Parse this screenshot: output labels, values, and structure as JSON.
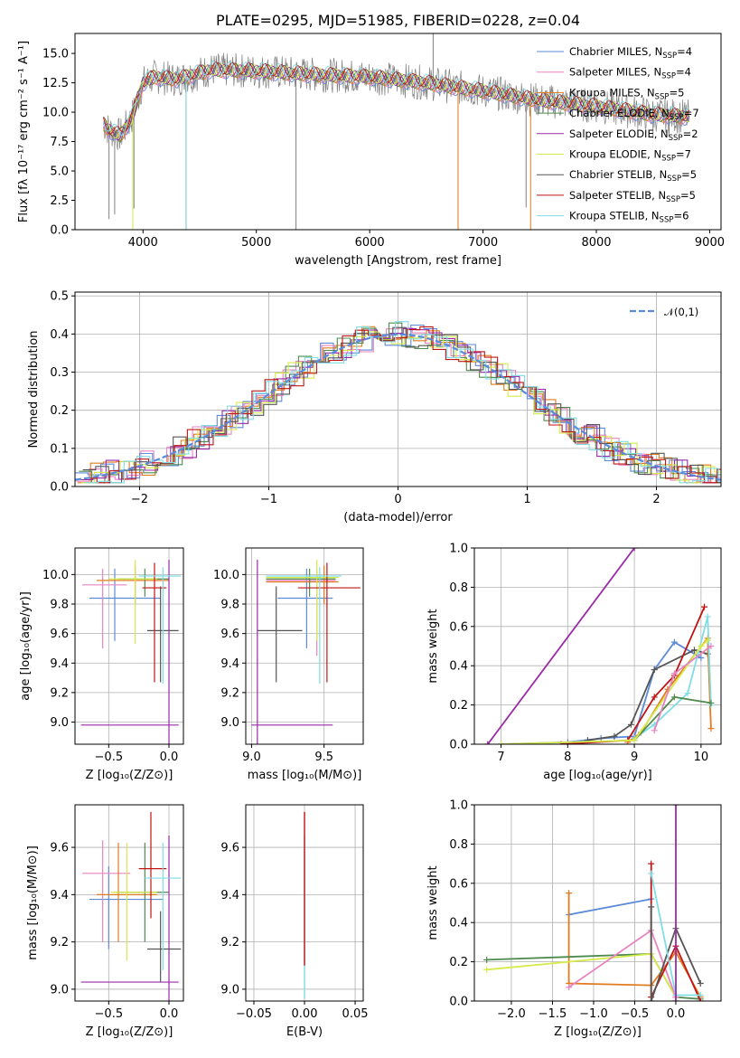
{
  "colors": {
    "chabrier_miles": "#5b8bd9",
    "salpeter_miles": "#e884c0",
    "kroupa_miles": "#e07b1f",
    "chabrier_elodie": "#4e8a4e",
    "salpeter_elodie": "#9a2aa8",
    "kroupa_elodie": "#d6ea4a",
    "chabrier_stelib": "#555555",
    "salpeter_stelib": "#c01414",
    "kroupa_stelib": "#7fdde4",
    "data": "#808080",
    "normal": "#5b8bd9"
  },
  "chart_data": [
    {
      "id": "spectrum",
      "type": "line",
      "title": "PLATE=0295, MJD=51985, FIBERID=0228, z=0.04",
      "xlabel": "wavelength [Angstrom, rest frame]",
      "ylabel": "Flux [fλ 10⁻¹⁷ erg cm⁻² s⁻¹ A⁻¹]",
      "xlim": [
        3400,
        9100
      ],
      "ylim": [
        0,
        16.7
      ],
      "xticks": [
        "4000",
        "5000",
        "6000",
        "7000",
        "8000",
        "9000"
      ],
      "yticks": [
        "0.0",
        "2.5",
        "5.0",
        "7.5",
        "10.0",
        "12.5",
        "15.0"
      ],
      "legend_position": "top-right",
      "legend": [
        {
          "label": "Chabrier MILES, N",
          "sub": "SSP",
          "tail": "=4",
          "color_key": "chabrier_miles"
        },
        {
          "label": "Salpeter MILES, N",
          "sub": "SSP",
          "tail": "=4",
          "color_key": "salpeter_miles"
        },
        {
          "label": "Kroupa MILES, N",
          "sub": "SSP",
          "tail": "=5",
          "color_key": "kroupa_miles"
        },
        {
          "label": "Chabrier ELODIE, N",
          "sub": "SSP",
          "tail": "=7",
          "color_key": "chabrier_elodie"
        },
        {
          "label": "Salpeter ELODIE, N",
          "sub": "SSP",
          "tail": "=2",
          "color_key": "salpeter_elodie"
        },
        {
          "label": "Kroupa ELODIE, N",
          "sub": "SSP",
          "tail": "=7",
          "color_key": "kroupa_elodie"
        },
        {
          "label": "Chabrier STELIB, N",
          "sub": "SSP",
          "tail": "=5",
          "color_key": "chabrier_stelib"
        },
        {
          "label": "Salpeter STELIB, N",
          "sub": "SSP",
          "tail": "=5",
          "color_key": "salpeter_stelib"
        },
        {
          "label": "Kroupa STELIB, N",
          "sub": "SSP",
          "tail": "=6",
          "color_key": "kroupa_stelib"
        }
      ],
      "continuum_knots": [
        [
          3650,
          9.0
        ],
        [
          3700,
          8.5
        ],
        [
          3800,
          8.0
        ],
        [
          3900,
          9.5
        ],
        [
          4000,
          12.5
        ],
        [
          4100,
          13.0
        ],
        [
          4300,
          12.8
        ],
        [
          4600,
          13.6
        ],
        [
          5000,
          13.5
        ],
        [
          5500,
          13.2
        ],
        [
          6000,
          13.0
        ],
        [
          6500,
          12.5
        ],
        [
          7000,
          11.8
        ],
        [
          7500,
          11.0
        ],
        [
          8000,
          10.5
        ],
        [
          8500,
          9.8
        ],
        [
          8820,
          9.6
        ]
      ],
      "data_spikes": [
        [
          3700,
          0.9
        ],
        [
          3750,
          1.3
        ],
        [
          3920,
          1.8
        ],
        [
          4380,
          0.0
        ],
        [
          5350,
          0.0
        ],
        [
          6560,
          16.7
        ],
        [
          6780,
          0.0
        ],
        [
          7380,
          1.9
        ],
        [
          8500,
          7.8
        ],
        [
          8640,
          8.0
        ]
      ]
    },
    {
      "id": "residuals",
      "type": "bar",
      "xlabel": "(data-model)/error",
      "ylabel": "Normed distribution",
      "xlim": [
        -2.5,
        2.5
      ],
      "ylim": [
        0,
        0.51
      ],
      "xticks": [
        "−2",
        "−1",
        "0",
        "1",
        "2"
      ],
      "yticks": [
        "0.0",
        "0.1",
        "0.2",
        "0.3",
        "0.4",
        "0.5"
      ],
      "bin_width": 0.1,
      "legend_position": "top-right",
      "legend_label": "𝒩(0,1)"
    },
    {
      "id": "age-vs-Z",
      "type": "scatter",
      "xlabel": "Z [log₁₀(Z/Z⊙)]",
      "ylabel": "age  [log₁₀(age/yr)]",
      "xlim": [
        -0.78,
        0.12
      ],
      "ylim": [
        8.85,
        10.18
      ],
      "xticks": [
        "−0.5",
        "0.0"
      ],
      "yticks": [
        "9.0",
        "9.2",
        "9.4",
        "9.6",
        "9.8",
        "10.0"
      ]
    },
    {
      "id": "age-vs-mass",
      "type": "scatter",
      "xlabel": "mass [log₁₀(M/M⊙)]",
      "xlim": [
        8.96,
        9.77
      ],
      "ylim": [
        8.85,
        10.18
      ],
      "xticks": [
        "9.0",
        "9.5"
      ],
      "yticks": [
        "9.0",
        "9.2",
        "9.4",
        "9.6",
        "9.8",
        "10.0"
      ]
    },
    {
      "id": "weight-vs-age",
      "type": "line",
      "xlabel": "age  [log₁₀(age/yr)]",
      "ylabel": "mass weight",
      "xlim": [
        6.6,
        10.3
      ],
      "ylim": [
        0,
        1.0
      ],
      "xticks": [
        "7",
        "8",
        "9",
        "10"
      ],
      "yticks": [
        "0.0",
        "0.2",
        "0.4",
        "0.6",
        "0.8",
        "1.0"
      ],
      "series": [
        {
          "color_key": "salpeter_elodie",
          "points": [
            [
              6.8,
              0.0
            ],
            [
              9.0,
              1.0
            ]
          ]
        },
        {
          "color_key": "chabrier_miles",
          "points": [
            [
              7.0,
              0.0
            ],
            [
              8.0,
              0.01
            ],
            [
              8.5,
              0.03
            ],
            [
              9.0,
              0.04
            ],
            [
              9.3,
              0.38
            ],
            [
              9.6,
              0.52
            ],
            [
              10.0,
              0.44
            ]
          ]
        },
        {
          "color_key": "chabrier_stelib",
          "points": [
            [
              8.3,
              0.02
            ],
            [
              8.7,
              0.04
            ],
            [
              8.95,
              0.1
            ],
            [
              9.3,
              0.38
            ],
            [
              9.9,
              0.48
            ],
            [
              10.1,
              0.46
            ]
          ]
        },
        {
          "color_key": "salpeter_stelib",
          "points": [
            [
              7.9,
              0.0
            ],
            [
              8.9,
              0.02
            ],
            [
              9.3,
              0.24
            ],
            [
              9.6,
              0.35
            ],
            [
              10.05,
              0.7
            ]
          ]
        },
        {
          "color_key": "kroupa_miles",
          "points": [
            [
              8.9,
              0.01
            ],
            [
              9.1,
              0.06
            ],
            [
              9.5,
              0.28
            ],
            [
              10.1,
              0.54
            ],
            [
              10.15,
              0.08
            ]
          ]
        },
        {
          "color_key": "kroupa_stelib",
          "points": [
            [
              9.0,
              0.03
            ],
            [
              9.3,
              0.1
            ],
            [
              9.8,
              0.26
            ],
            [
              10.1,
              0.65
            ],
            [
              10.15,
              0.2
            ]
          ]
        },
        {
          "color_key": "chabrier_elodie",
          "points": [
            [
              9.0,
              0.02
            ],
            [
              9.6,
              0.24
            ],
            [
              10.15,
              0.21
            ]
          ]
        },
        {
          "color_key": "kroupa_elodie",
          "points": [
            [
              7.0,
              0.0
            ],
            [
              9.0,
              0.02
            ],
            [
              10.0,
              0.5
            ],
            [
              10.1,
              0.53
            ]
          ]
        },
        {
          "color_key": "salpeter_miles",
          "points": [
            [
              9.3,
              0.07
            ],
            [
              9.6,
              0.36
            ],
            [
              10.15,
              0.5
            ]
          ]
        }
      ]
    },
    {
      "id": "mass-vs-Z",
      "type": "scatter",
      "xlabel": "Z [log₁₀(Z/Z⊙)]",
      "ylabel": "mass [log₁₀(M/M⊙)]",
      "xlim": [
        -0.78,
        0.12
      ],
      "ylim": [
        8.95,
        9.78
      ],
      "xticks": [
        "−0.5",
        "0.0"
      ],
      "yticks": [
        "9.0",
        "9.2",
        "9.4",
        "9.6"
      ]
    },
    {
      "id": "mass-vs-ebv",
      "type": "scatter",
      "xlabel": "E(B-V)",
      "xlim": [
        -0.058,
        0.058
      ],
      "ylim": [
        8.95,
        9.78
      ],
      "xticks": [
        "−0.05",
        "0.00",
        "0.05"
      ],
      "yticks": [
        "9.0",
        "9.2",
        "9.4",
        "9.6"
      ],
      "points": [
        {
          "color_key": "kroupa_stelib",
          "x": 0.0,
          "y": 9.38,
          "yerr": [
            8.96,
            9.65
          ]
        },
        {
          "color_key": "salpeter_stelib",
          "x": 0.0,
          "y": 9.5,
          "yerr": [
            9.1,
            9.75
          ]
        }
      ]
    },
    {
      "id": "weight-vs-Z",
      "type": "line",
      "xlabel": "Z [log₁₀(Z/Z⊙)]",
      "ylabel": "mass weight",
      "xlim": [
        -2.45,
        0.55
      ],
      "ylim": [
        0,
        1.0
      ],
      "xticks": [
        "−2.0",
        "−1.5",
        "−1.0",
        "−0.5",
        "0.0"
      ],
      "yticks": [
        "0.0",
        "0.2",
        "0.4",
        "0.6",
        "0.8",
        "1.0"
      ],
      "series": [
        {
          "color_key": "chabrier_miles",
          "points": [
            [
              -1.3,
              0.44
            ],
            [
              -0.3,
              0.52
            ]
          ]
        },
        {
          "color_key": "kroupa_miles",
          "points": [
            [
              -1.3,
              0.55
            ],
            [
              -1.3,
              0.09
            ],
            [
              -0.3,
              0.08
            ],
            [
              0.0,
              0.25
            ],
            [
              0.3,
              0.02
            ]
          ]
        },
        {
          "color_key": "chabrier_elodie",
          "points": [
            [
              -2.3,
              0.21
            ],
            [
              -0.3,
              0.24
            ],
            [
              0.0,
              0.02
            ],
            [
              0.3,
              0.01
            ]
          ]
        },
        {
          "color_key": "kroupa_elodie",
          "points": [
            [
              -2.3,
              0.16
            ],
            [
              -0.3,
              0.24
            ],
            [
              0.0,
              0.02
            ]
          ]
        },
        {
          "color_key": "salpeter_miles",
          "points": [
            [
              -1.3,
              0.07
            ],
            [
              -0.3,
              0.36
            ],
            [
              0.0,
              0.02
            ]
          ]
        },
        {
          "color_key": "salpeter_stelib",
          "points": [
            [
              -0.3,
              0.7
            ],
            [
              -0.3,
              0.02
            ],
            [
              0.0,
              0.28
            ],
            [
              0.3,
              0.0
            ]
          ]
        },
        {
          "color_key": "chabrier_stelib",
          "points": [
            [
              -0.3,
              0.48
            ],
            [
              -0.3,
              0.0
            ],
            [
              0.0,
              0.37
            ],
            [
              0.3,
              0.09
            ]
          ]
        },
        {
          "color_key": "kroupa_stelib",
          "points": [
            [
              -0.3,
              0.65
            ],
            [
              0.0,
              0.03
            ],
            [
              0.3,
              0.03
            ]
          ]
        },
        {
          "color_key": "salpeter_elodie",
          "points": [
            [
              0.0,
              0.0
            ],
            [
              0.0,
              1.0
            ]
          ]
        }
      ]
    }
  ]
}
